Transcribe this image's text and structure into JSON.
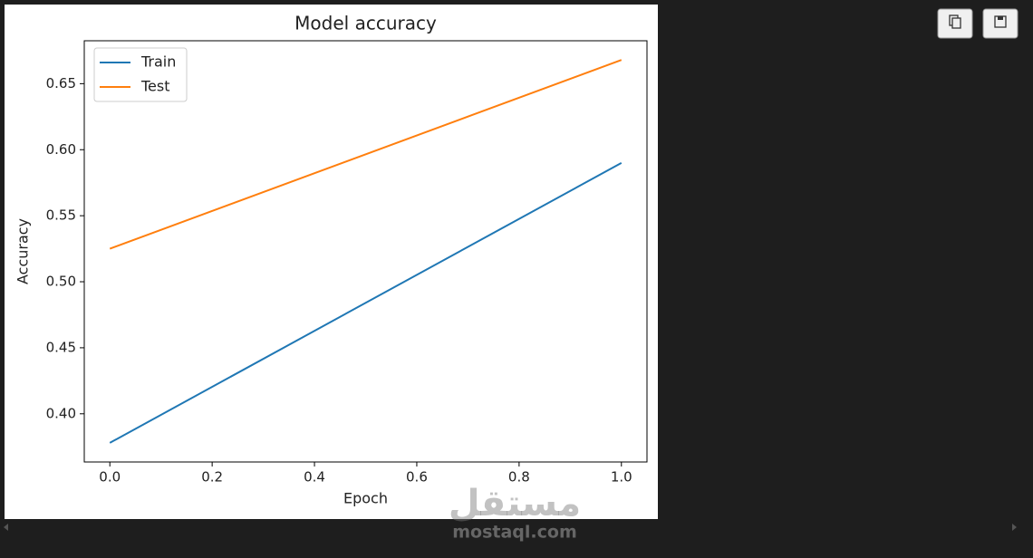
{
  "chart_data": {
    "type": "line",
    "title": "Model accuracy",
    "x_label": "Epoch",
    "y_label": "Accuracy",
    "x": [
      0,
      1
    ],
    "series": [
      {
        "name": "Train",
        "color": "#1f77b4",
        "values": [
          0.378,
          0.59
        ]
      },
      {
        "name": "Test",
        "color": "#ff7f0e",
        "values": [
          0.525,
          0.668
        ]
      }
    ],
    "xlim": [
      -0.05,
      1.05
    ],
    "xticks": [
      {
        "value": 0,
        "label": "0.0"
      },
      0.2,
      0.4,
      0.6,
      0.8,
      {
        "value": 1,
        "label": "1.0"
      }
    ],
    "ylim": [
      0.3635,
      0.6825
    ],
    "yticks": [
      {
        "value": 0.4,
        "label": "0.40"
      },
      0.45,
      {
        "value": 0.5,
        "label": "0.50"
      },
      0.55,
      {
        "value": 0.6,
        "label": "0.60"
      },
      0.65
    ],
    "legend": "upper left",
    "grid": false
  },
  "watermark": {
    "arabic": "مستقل",
    "latin": "mostaql.com"
  }
}
